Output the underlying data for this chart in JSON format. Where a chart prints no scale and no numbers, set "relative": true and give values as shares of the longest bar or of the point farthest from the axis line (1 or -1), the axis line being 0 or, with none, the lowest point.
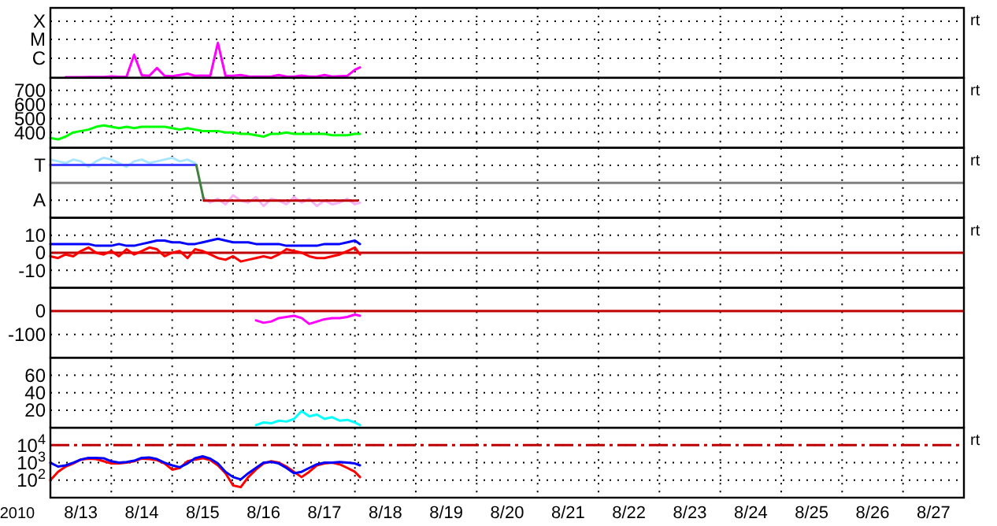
{
  "chart_data": [
    {
      "type": "line",
      "grid": true,
      "tick_labels": "y",
      "xlim": [
        "2010-08-13",
        "2010-08-28"
      ],
      "xticks": [
        {
          "value": "2010-08-14",
          "label": null
        },
        {
          "value": "2010-08-15",
          "label": null
        },
        {
          "value": "2010-08-16",
          "label": null
        },
        {
          "value": "2010-08-17",
          "label": null
        },
        {
          "value": "2010-08-18",
          "label": null
        },
        {
          "value": "2010-08-19",
          "label": null
        },
        {
          "value": "2010-08-20",
          "label": null
        },
        {
          "value": "2010-08-21",
          "label": null
        },
        {
          "value": "2010-08-22",
          "label": null
        },
        {
          "value": "2010-08-23",
          "label": null
        },
        {
          "value": "2010-08-24",
          "label": null
        },
        {
          "value": "2010-08-25",
          "label": null
        },
        {
          "value": "2010-08-26",
          "label": null
        },
        {
          "value": "2010-08-27",
          "label": null
        }
      ],
      "relative": true,
      "annotations": [
        "rt",
        "X",
        "M",
        "C"
      ],
      "x": [
        "2010-08-13T06:00",
        "2010-08-13T09:00",
        "2010-08-13T12:00",
        "2010-08-13T15:00",
        "2010-08-13T18:00",
        "2010-08-13T21:00",
        "2010-08-14T00:00",
        "2010-08-14T03:00",
        "2010-08-14T06:00",
        "2010-08-14T09:00",
        "2010-08-14T12:00",
        "2010-08-14T15:00",
        "2010-08-14T18:00",
        "2010-08-14T21:00",
        "2010-08-15T00:00",
        "2010-08-15T03:00",
        "2010-08-15T06:00",
        "2010-08-15T09:00",
        "2010-08-15T12:00",
        "2010-08-15T15:00",
        "2010-08-15T18:00",
        "2010-08-15T21:00",
        "2010-08-16T00:00",
        "2010-08-16T03:00",
        "2010-08-16T06:00",
        "2010-08-16T09:00",
        "2010-08-16T12:00",
        "2010-08-16T15:00",
        "2010-08-16T18:00",
        "2010-08-16T21:00",
        "2010-08-17T00:00",
        "2010-08-17T03:00",
        "2010-08-17T06:00",
        "2010-08-17T09:00",
        "2010-08-17T12:00",
        "2010-08-17T15:00",
        "2010-08-17T18:00",
        "2010-08-17T21:00",
        "2010-08-18T00:00",
        "2010-08-18T02:00"
      ],
      "series": [
        {
          "color": "#ff00ff",
          "values": [
            0.021,
            0.021,
            0.021,
            0.023,
            0.023,
            0.025,
            0.043,
            0.03,
            0.032,
            0.66,
            0.075,
            0.057,
            0.28,
            0.057,
            0.047,
            0.081,
            0.12,
            0.057,
            0.066,
            0.057,
            1,
            0.057,
            0.057,
            0.081,
            0.043,
            0.038,
            0.038,
            0.038,
            0.081,
            0.038,
            0.038,
            0.066,
            0.036,
            0.036,
            0.081,
            0.038,
            0.047,
            0.057,
            0.23,
            0.3
          ]
        }
      ]
    },
    {
      "type": "line",
      "grid": true,
      "tick_labels": "y",
      "xlim": [
        "2010-08-13",
        "2010-08-28"
      ],
      "xticks": [
        {
          "value": "2010-08-14",
          "label": null
        },
        {
          "value": "2010-08-15",
          "label": null
        },
        {
          "value": "2010-08-16",
          "label": null
        },
        {
          "value": "2010-08-17",
          "label": null
        },
        {
          "value": "2010-08-18",
          "label": null
        },
        {
          "value": "2010-08-19",
          "label": null
        },
        {
          "value": "2010-08-20",
          "label": null
        },
        {
          "value": "2010-08-21",
          "label": null
        },
        {
          "value": "2010-08-22",
          "label": null
        },
        {
          "value": "2010-08-23",
          "label": null
        },
        {
          "value": "2010-08-24",
          "label": null
        },
        {
          "value": "2010-08-25",
          "label": null
        },
        {
          "value": "2010-08-26",
          "label": null
        },
        {
          "value": "2010-08-27",
          "label": null
        }
      ],
      "ylim": [
        290,
        790
      ],
      "yticks": [
        400,
        500,
        600,
        700
      ],
      "annotations": [
        "rt"
      ],
      "x": [
        "2010-08-13T00:00",
        "2010-08-13T03:00",
        "2010-08-13T06:00",
        "2010-08-13T09:00",
        "2010-08-13T12:00",
        "2010-08-13T15:00",
        "2010-08-13T18:00",
        "2010-08-13T21:00",
        "2010-08-14T00:00",
        "2010-08-14T03:00",
        "2010-08-14T06:00",
        "2010-08-14T09:00",
        "2010-08-14T12:00",
        "2010-08-14T15:00",
        "2010-08-14T18:00",
        "2010-08-14T21:00",
        "2010-08-15T00:00",
        "2010-08-15T03:00",
        "2010-08-15T06:00",
        "2010-08-15T09:00",
        "2010-08-15T12:00",
        "2010-08-15T15:00",
        "2010-08-15T18:00",
        "2010-08-15T21:00",
        "2010-08-16T00:00",
        "2010-08-16T03:00",
        "2010-08-16T06:00",
        "2010-08-16T09:00",
        "2010-08-16T12:00",
        "2010-08-16T15:00",
        "2010-08-16T18:00",
        "2010-08-16T21:00",
        "2010-08-17T00:00",
        "2010-08-17T03:00",
        "2010-08-17T06:00",
        "2010-08-17T09:00",
        "2010-08-17T12:00",
        "2010-08-17T15:00",
        "2010-08-17T18:00",
        "2010-08-17T21:00",
        "2010-08-18T00:00",
        "2010-08-18T02:00"
      ],
      "series": [
        {
          "color": "#00ff00",
          "values": [
            360,
            350,
            370,
            400,
            410,
            420,
            440,
            450,
            440,
            430,
            440,
            430,
            440,
            440,
            440,
            440,
            430,
            420,
            430,
            420,
            410,
            410,
            410,
            400,
            400,
            390,
            390,
            380,
            370,
            390,
            390,
            400,
            390,
            390,
            390,
            390,
            390,
            380,
            380,
            380,
            390,
            390
          ]
        }
      ]
    },
    {
      "type": "line",
      "grid": true,
      "tick_labels": "y",
      "xlim": [
        "2010-08-13",
        "2010-08-28"
      ],
      "xticks": [
        {
          "value": "2010-08-14",
          "label": null
        },
        {
          "value": "2010-08-15",
          "label": null
        },
        {
          "value": "2010-08-16",
          "label": null
        },
        {
          "value": "2010-08-17",
          "label": null
        },
        {
          "value": "2010-08-18",
          "label": null
        },
        {
          "value": "2010-08-19",
          "label": null
        },
        {
          "value": "2010-08-20",
          "label": null
        },
        {
          "value": "2010-08-21",
          "label": null
        },
        {
          "value": "2010-08-22",
          "label": null
        },
        {
          "value": "2010-08-23",
          "label": null
        },
        {
          "value": "2010-08-24",
          "label": null
        },
        {
          "value": "2010-08-25",
          "label": null
        },
        {
          "value": "2010-08-26",
          "label": null
        },
        {
          "value": "2010-08-27",
          "label": null
        }
      ],
      "relative": true,
      "annotations": [
        "rt",
        "T",
        "A"
      ],
      "ref_lines": [
        {
          "axis": "y",
          "value": 0,
          "color": "#808080"
        }
      ],
      "series": [
        {
          "color": "#a8e4ff",
          "x": [
            "2010-08-13T00:00",
            "2010-08-13T03:00",
            "2010-08-13T06:00",
            "2010-08-13T09:00",
            "2010-08-13T12:00",
            "2010-08-13T15:00",
            "2010-08-13T18:00",
            "2010-08-13T21:00",
            "2010-08-14T00:00",
            "2010-08-14T03:00",
            "2010-08-14T06:00",
            "2010-08-14T09:00",
            "2010-08-14T12:00",
            "2010-08-14T15:00",
            "2010-08-14T18:00",
            "2010-08-14T21:00",
            "2010-08-15T00:00",
            "2010-08-15T03:00",
            "2010-08-15T06:00",
            "2010-08-15T09:00"
          ],
          "values": [
            0.93,
            0.86,
            0.79,
            0.93,
            0.86,
            0.64,
            0.86,
            1,
            0.93,
            0.79,
            0.64,
            0.86,
            0.93,
            0.79,
            0.86,
            0.93,
            1,
            0.86,
            0.93,
            0.79
          ]
        },
        {
          "color": "#f5b4f5",
          "x": [
            "2010-08-15T12:00",
            "2010-08-15T15:00",
            "2010-08-15T18:00",
            "2010-08-15T21:00",
            "2010-08-16T00:00",
            "2010-08-16T03:00",
            "2010-08-16T06:00",
            "2010-08-16T09:00",
            "2010-08-16T12:00",
            "2010-08-16T15:00",
            "2010-08-16T18:00",
            "2010-08-16T21:00",
            "2010-08-17T00:00",
            "2010-08-17T03:00",
            "2010-08-17T06:00",
            "2010-08-17T09:00",
            "2010-08-17T12:00",
            "2010-08-17T15:00",
            "2010-08-17T18:00",
            "2010-08-17T21:00",
            "2010-08-18T00:00",
            "2010-08-18T02:00"
          ],
          "values": [
            -0.57,
            -0.79,
            -0.64,
            -0.86,
            -0.5,
            -0.71,
            -0.79,
            -0.57,
            -0.93,
            -0.64,
            -0.71,
            -0.86,
            -0.57,
            -0.79,
            -0.64,
            -0.93,
            -0.71,
            -0.86,
            -0.79,
            -0.64,
            -0.86,
            -0.79
          ]
        },
        {
          "color": "#4040ff",
          "x": [
            "2010-08-13T00:00",
            "2010-08-15T09:30"
          ],
          "values": [
            0.71,
            0.71
          ]
        },
        {
          "color": "#408040",
          "x": [
            "2010-08-15T09:30",
            "2010-08-15T12:30"
          ],
          "values": [
            0.71,
            -0.71
          ]
        },
        {
          "color": "#c00000",
          "x": [
            "2010-08-15T12:30",
            "2010-08-18T01:00"
          ],
          "values": [
            -0.71,
            -0.71
          ]
        }
      ]
    },
    {
      "type": "line",
      "grid": true,
      "tick_labels": "y",
      "xlim": [
        "2010-08-13",
        "2010-08-28"
      ],
      "xticks": [
        {
          "value": "2010-08-14",
          "label": null
        },
        {
          "value": "2010-08-15",
          "label": null
        },
        {
          "value": "2010-08-16",
          "label": null
        },
        {
          "value": "2010-08-17",
          "label": null
        },
        {
          "value": "2010-08-18",
          "label": null
        },
        {
          "value": "2010-08-19",
          "label": null
        },
        {
          "value": "2010-08-20",
          "label": null
        },
        {
          "value": "2010-08-21",
          "label": null
        },
        {
          "value": "2010-08-22",
          "label": null
        },
        {
          "value": "2010-08-23",
          "label": null
        },
        {
          "value": "2010-08-24",
          "label": null
        },
        {
          "value": "2010-08-25",
          "label": null
        },
        {
          "value": "2010-08-26",
          "label": null
        },
        {
          "value": "2010-08-27",
          "label": null
        }
      ],
      "ylim": [
        -20,
        20
      ],
      "yticks": [
        10,
        0,
        -10
      ],
      "annotations": [
        "rt"
      ],
      "ref_lines": [
        {
          "axis": "y",
          "value": 0,
          "color": "#c00000"
        }
      ],
      "x": [
        "2010-08-13T00:00",
        "2010-08-13T03:00",
        "2010-08-13T06:00",
        "2010-08-13T09:00",
        "2010-08-13T12:00",
        "2010-08-13T15:00",
        "2010-08-13T18:00",
        "2010-08-13T21:00",
        "2010-08-14T00:00",
        "2010-08-14T03:00",
        "2010-08-14T06:00",
        "2010-08-14T09:00",
        "2010-08-14T12:00",
        "2010-08-14T15:00",
        "2010-08-14T18:00",
        "2010-08-14T21:00",
        "2010-08-15T00:00",
        "2010-08-15T03:00",
        "2010-08-15T06:00",
        "2010-08-15T09:00",
        "2010-08-15T12:00",
        "2010-08-15T15:00",
        "2010-08-15T18:00",
        "2010-08-15T21:00",
        "2010-08-16T00:00",
        "2010-08-16T03:00",
        "2010-08-16T06:00",
        "2010-08-16T09:00",
        "2010-08-16T12:00",
        "2010-08-16T15:00",
        "2010-08-16T18:00",
        "2010-08-16T21:00",
        "2010-08-17T00:00",
        "2010-08-17T03:00",
        "2010-08-17T06:00",
        "2010-08-17T09:00",
        "2010-08-17T12:00",
        "2010-08-17T15:00",
        "2010-08-17T18:00",
        "2010-08-17T21:00",
        "2010-08-18T00:00",
        "2010-08-18T02:00"
      ],
      "series": [
        {
          "color": "#0000ff",
          "values": [
            5,
            5,
            5,
            5,
            5,
            5,
            4,
            4,
            4,
            5,
            4,
            4,
            5,
            6,
            7,
            7,
            6,
            6,
            5,
            5,
            6,
            7,
            8,
            7,
            6,
            6,
            6,
            5,
            5,
            5,
            5,
            4,
            4,
            4,
            4,
            4,
            5,
            5,
            5,
            6,
            7,
            5
          ]
        },
        {
          "color": "#ff0000",
          "values": [
            -2,
            -3,
            -1,
            -2,
            1,
            3,
            0,
            -1,
            1,
            -2,
            2,
            -1,
            1,
            3,
            2,
            -2,
            0,
            1,
            -3,
            2,
            1,
            -1,
            -3,
            -4,
            -2,
            -5,
            -4,
            -3,
            -2,
            -3,
            -1,
            2,
            1,
            0,
            -2,
            -3,
            -3,
            -2,
            -1,
            1,
            3,
            -1
          ]
        }
      ]
    },
    {
      "type": "line",
      "grid": true,
      "tick_labels": "y",
      "xlim": [
        "2010-08-13",
        "2010-08-28"
      ],
      "xticks": [
        {
          "value": "2010-08-14",
          "label": null
        },
        {
          "value": "2010-08-15",
          "label": null
        },
        {
          "value": "2010-08-16",
          "label": null
        },
        {
          "value": "2010-08-17",
          "label": null
        },
        {
          "value": "2010-08-18",
          "label": null
        },
        {
          "value": "2010-08-19",
          "label": null
        },
        {
          "value": "2010-08-20",
          "label": null
        },
        {
          "value": "2010-08-21",
          "label": null
        },
        {
          "value": "2010-08-22",
          "label": null
        },
        {
          "value": "2010-08-23",
          "label": null
        },
        {
          "value": "2010-08-24",
          "label": null
        },
        {
          "value": "2010-08-25",
          "label": null
        },
        {
          "value": "2010-08-26",
          "label": null
        },
        {
          "value": "2010-08-27",
          "label": null
        }
      ],
      "ylim": [
        -200,
        100
      ],
      "yticks": [
        0,
        -100
      ],
      "ref_lines": [
        {
          "axis": "y",
          "value": 0,
          "color": "#c00000"
        }
      ],
      "series": [
        {
          "color": "#ff00ff",
          "x": [
            "2010-08-16T09:00",
            "2010-08-16T12:00",
            "2010-08-16T15:00",
            "2010-08-16T18:00",
            "2010-08-16T21:00",
            "2010-08-17T00:00",
            "2010-08-17T03:00",
            "2010-08-17T06:00",
            "2010-08-17T09:00",
            "2010-08-17T12:00",
            "2010-08-17T15:00",
            "2010-08-17T18:00",
            "2010-08-17T21:00",
            "2010-08-18T00:00",
            "2010-08-18T02:00"
          ],
          "values": [
            -40,
            -50,
            -45,
            -30,
            -25,
            -20,
            -30,
            -55,
            -45,
            -35,
            -30,
            -30,
            -25,
            -15,
            -20
          ]
        }
      ]
    },
    {
      "type": "line",
      "grid": true,
      "tick_labels": "y",
      "xlim": [
        "2010-08-13",
        "2010-08-28"
      ],
      "xticks": [
        {
          "value": "2010-08-14",
          "label": null
        },
        {
          "value": "2010-08-15",
          "label": null
        },
        {
          "value": "2010-08-16",
          "label": null
        },
        {
          "value": "2010-08-17",
          "label": null
        },
        {
          "value": "2010-08-18",
          "label": null
        },
        {
          "value": "2010-08-19",
          "label": null
        },
        {
          "value": "2010-08-20",
          "label": null
        },
        {
          "value": "2010-08-21",
          "label": null
        },
        {
          "value": "2010-08-22",
          "label": null
        },
        {
          "value": "2010-08-23",
          "label": null
        },
        {
          "value": "2010-08-24",
          "label": null
        },
        {
          "value": "2010-08-25",
          "label": null
        },
        {
          "value": "2010-08-26",
          "label": null
        },
        {
          "value": "2010-08-27",
          "label": null
        }
      ],
      "ylim": [
        0,
        80
      ],
      "yticks": [
        20,
        40,
        60
      ],
      "series": [
        {
          "color": "#00ffff",
          "x": [
            "2010-08-16T09:00",
            "2010-08-16T12:00",
            "2010-08-16T15:00",
            "2010-08-16T18:00",
            "2010-08-16T21:00",
            "2010-08-17T00:00",
            "2010-08-17T03:00",
            "2010-08-17T06:00",
            "2010-08-17T09:00",
            "2010-08-17T12:00",
            "2010-08-17T15:00",
            "2010-08-17T18:00",
            "2010-08-17T21:00",
            "2010-08-18T00:00",
            "2010-08-18T02:00"
          ],
          "values": [
            3,
            6,
            5,
            8,
            7,
            10,
            19,
            13,
            15,
            10,
            12,
            8,
            9,
            6,
            3
          ]
        }
      ]
    },
    {
      "type": "line",
      "log": true,
      "grid": true,
      "xlim": [
        "2010-08-13",
        "2010-08-28"
      ],
      "xticks": [
        {
          "value": "2010-08-14",
          "label": null
        },
        {
          "value": "2010-08-15",
          "label": null
        },
        {
          "value": "2010-08-16",
          "label": null
        },
        {
          "value": "2010-08-17",
          "label": null
        },
        {
          "value": "2010-08-18",
          "label": null
        },
        {
          "value": "2010-08-19",
          "label": null
        },
        {
          "value": "2010-08-20",
          "label": null
        },
        {
          "value": "2010-08-21",
          "label": null
        },
        {
          "value": "2010-08-22",
          "label": null
        },
        {
          "value": "2010-08-23",
          "label": null
        },
        {
          "value": "2010-08-24",
          "label": null
        },
        {
          "value": "2010-08-25",
          "label": null
        },
        {
          "value": "2010-08-26",
          "label": null
        },
        {
          "value": "2010-08-27",
          "label": null
        },
        {
          "value": "2010-08-13T12:00",
          "label": "8/13"
        },
        {
          "value": "2010-08-14T12:00",
          "label": "8/14"
        },
        {
          "value": "2010-08-15T12:00",
          "label": "8/15"
        },
        {
          "value": "2010-08-16T12:00",
          "label": "8/16"
        },
        {
          "value": "2010-08-17T12:00",
          "label": "8/17"
        },
        {
          "value": "2010-08-18T12:00",
          "label": "8/18"
        },
        {
          "value": "2010-08-19T12:00",
          "label": "8/19"
        },
        {
          "value": "2010-08-20T12:00",
          "label": "8/20"
        },
        {
          "value": "2010-08-21T12:00",
          "label": "8/21"
        },
        {
          "value": "2010-08-22T12:00",
          "label": "8/22"
        },
        {
          "value": "2010-08-23T12:00",
          "label": "8/23"
        },
        {
          "value": "2010-08-24T12:00",
          "label": "8/24"
        },
        {
          "value": "2010-08-25T12:00",
          "label": "8/25"
        },
        {
          "value": "2010-08-26T12:00",
          "label": "8/26"
        },
        {
          "value": "2010-08-27T12:00",
          "label": "8/27"
        }
      ],
      "ylim": [
        10,
        100000
      ],
      "yticks": [
        {
          "value": 10000,
          "label": "10$^{4}$"
        },
        {
          "value": 1000,
          "label": "10$^{3}$"
        },
        {
          "value": 100,
          "label": "10$^{2}$"
        }
      ],
      "annotations": [
        "rt",
        "2010"
      ],
      "ref_lines": [
        {
          "axis": "y",
          "value": 10000,
          "color": "#c00000",
          "line_style": "dashed"
        }
      ],
      "x": [
        "2010-08-13T00:00",
        "2010-08-13T03:00",
        "2010-08-13T06:00",
        "2010-08-13T09:00",
        "2010-08-13T12:00",
        "2010-08-13T15:00",
        "2010-08-13T18:00",
        "2010-08-13T21:00",
        "2010-08-14T00:00",
        "2010-08-14T03:00",
        "2010-08-14T06:00",
        "2010-08-14T09:00",
        "2010-08-14T12:00",
        "2010-08-14T15:00",
        "2010-08-14T18:00",
        "2010-08-14T21:00",
        "2010-08-15T00:00",
        "2010-08-15T03:00",
        "2010-08-15T06:00",
        "2010-08-15T09:00",
        "2010-08-15T12:00",
        "2010-08-15T15:00",
        "2010-08-15T18:00",
        "2010-08-15T21:00",
        "2010-08-16T00:00",
        "2010-08-16T03:00",
        "2010-08-16T06:00",
        "2010-08-16T09:00",
        "2010-08-16T12:00",
        "2010-08-16T15:00",
        "2010-08-16T18:00",
        "2010-08-16T21:00",
        "2010-08-17T00:00",
        "2010-08-17T03:00",
        "2010-08-17T06:00",
        "2010-08-17T09:00",
        "2010-08-17T12:00",
        "2010-08-17T15:00",
        "2010-08-17T18:00",
        "2010-08-17T21:00",
        "2010-08-18T00:00",
        "2010-08-18T02:00"
      ],
      "series": [
        {
          "color": "#ff0000",
          "values": [
            100,
            300,
            600,
            900,
            1500,
            1700,
            1600,
            1200,
            900,
            900,
            1000,
            1200,
            1700,
            1600,
            1400,
            900,
            400,
            500,
            1200,
            1500,
            1800,
            1400,
            700,
            250,
            50,
            40,
            150,
            400,
            900,
            1200,
            1000,
            600,
            300,
            150,
            300,
            700,
            900,
            1000,
            800,
            500,
            300,
            150
          ]
        },
        {
          "color": "#0000ff",
          "values": [
            1000,
            600,
            700,
            1000,
            1500,
            1900,
            1900,
            1800,
            1200,
            1000,
            1100,
            1300,
            1900,
            2000,
            1600,
            1000,
            700,
            550,
            900,
            1800,
            2300,
            1700,
            900,
            300,
            150,
            110,
            250,
            500,
            1000,
            1100,
            900,
            500,
            250,
            300,
            500,
            800,
            1000,
            1000,
            1100,
            1000,
            900,
            700
          ]
        }
      ]
    }
  ]
}
